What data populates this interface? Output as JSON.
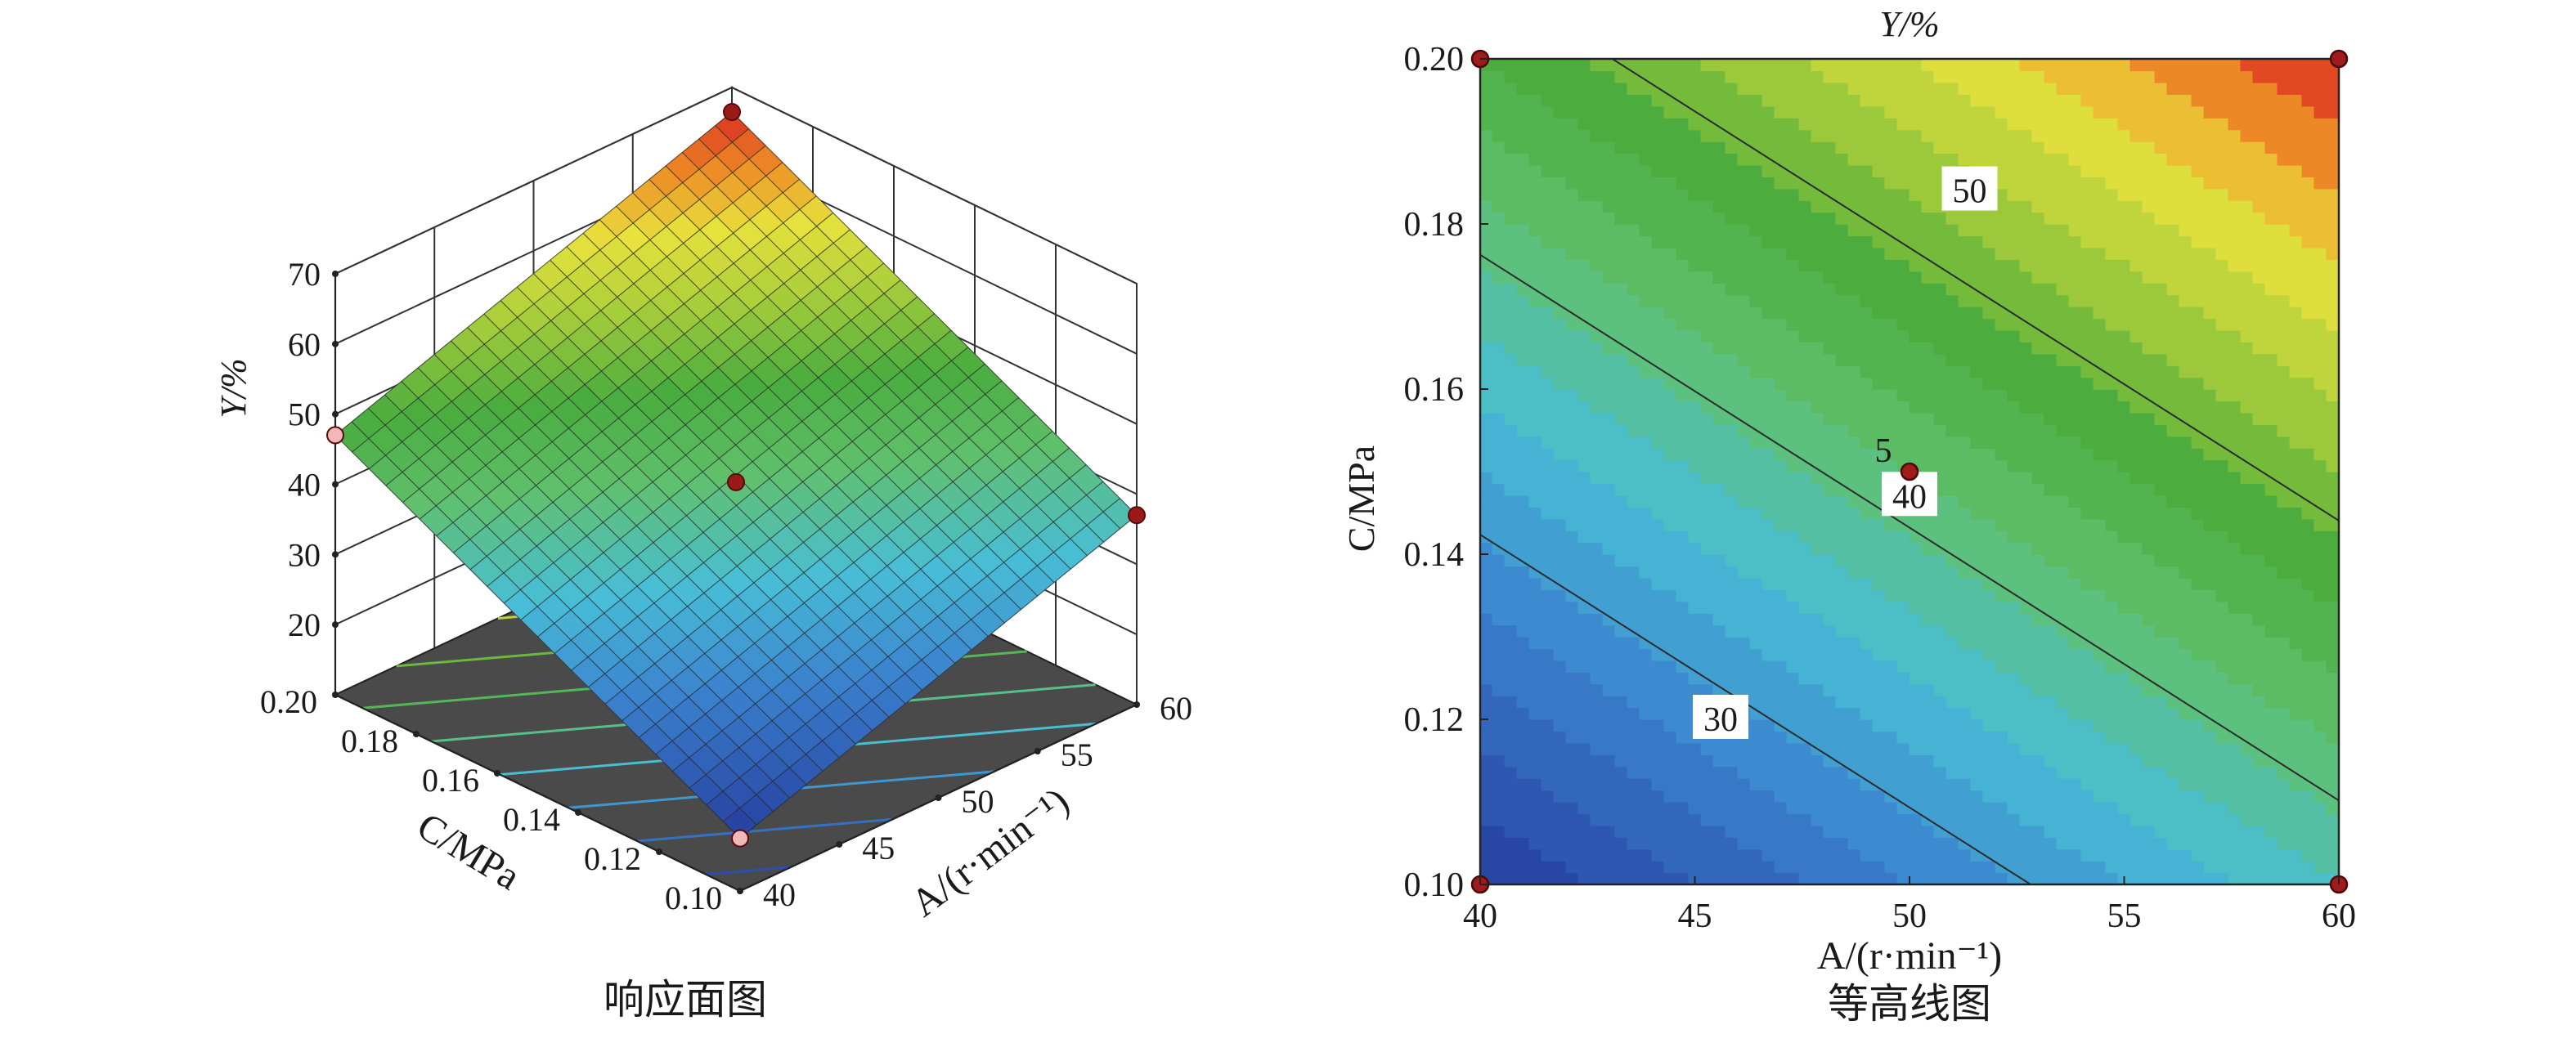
{
  "chart_data": [
    {
      "type": "surface",
      "caption": "响应面图",
      "zlabel": "Y/%",
      "xlabel": "A/(r·min⁻¹)",
      "ylabel": "C/MPa",
      "x_ticks": [
        "40",
        "45",
        "50",
        "55",
        "60"
      ],
      "y_ticks": [
        "0.10",
        "0.12",
        "0.14",
        "0.16",
        "0.18",
        "0.20"
      ],
      "z_ticks": [
        "20",
        "30",
        "40",
        "50",
        "60",
        "70"
      ],
      "xlim": [
        40,
        60
      ],
      "ylim": [
        0.1,
        0.2
      ],
      "zlim": [
        10,
        70
      ],
      "corner_values": [
        {
          "A": 40,
          "C": 0.1,
          "Y": 17.5
        },
        {
          "A": 60,
          "C": 0.1,
          "Y": 37.0
        },
        {
          "A": 40,
          "C": 0.2,
          "Y": 47.0
        },
        {
          "A": 60,
          "C": 0.2,
          "Y": 66.5
        }
      ],
      "center_value": {
        "A": 50,
        "C": 0.15,
        "Y": 41.0
      },
      "colors": {
        "low": "#2b4ea8",
        "mid": "#3fae48",
        "high": "#d92a22",
        "floor": "#4a4a4a",
        "marker": "#9a1a1a"
      }
    },
    {
      "type": "contour",
      "caption": "等高线图",
      "title": "Y/%",
      "xlabel": "A/(r·min⁻¹)",
      "ylabel": "C/MPa",
      "x_ticks": [
        "40",
        "45",
        "50",
        "55",
        "60"
      ],
      "y_ticks": [
        "0.10",
        "0.12",
        "0.14",
        "0.16",
        "0.18",
        "0.20"
      ],
      "xlim": [
        40,
        60
      ],
      "ylim": [
        0.1,
        0.2
      ],
      "contour_levels": [
        30,
        40,
        50
      ],
      "contour_labels": [
        "30",
        "40",
        "50"
      ],
      "center_label": "5",
      "design_points": [
        {
          "A": 40,
          "C": 0.1
        },
        {
          "A": 60,
          "C": 0.1
        },
        {
          "A": 40,
          "C": 0.2
        },
        {
          "A": 60,
          "C": 0.2
        },
        {
          "A": 50,
          "C": 0.15
        }
      ]
    }
  ]
}
